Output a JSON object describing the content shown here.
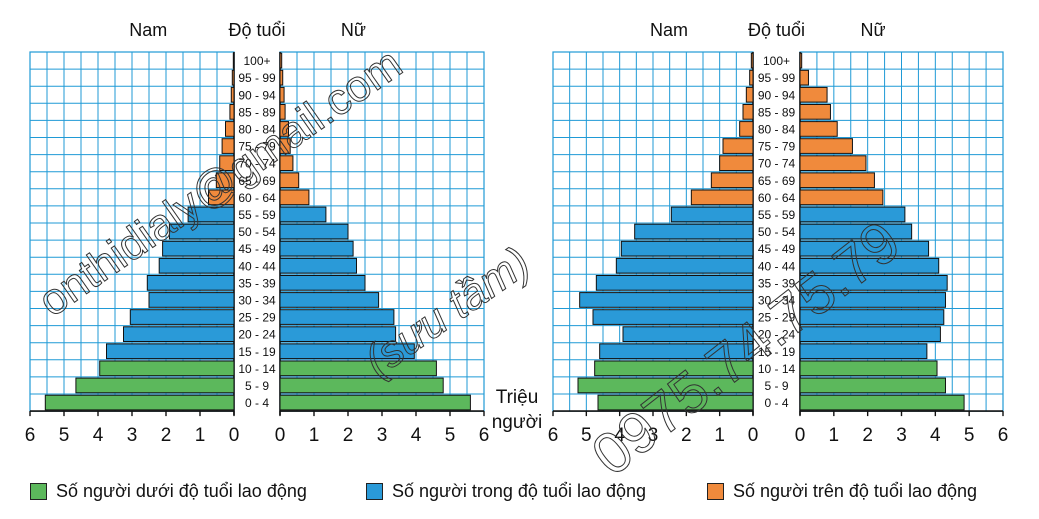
{
  "chart_data": [
    {
      "type": "bar",
      "side_labels": {
        "left": "Nam",
        "middle": "Độ tuổi",
        "right": "Nữ"
      },
      "age_groups": [
        "100+",
        "95 - 99",
        "90 - 94",
        "85 - 89",
        "80 - 84",
        "75 - 79",
        "70 - 74",
        "65 - 69",
        "60 - 64",
        "55 - 59",
        "50 - 54",
        "45 - 49",
        "40 - 44",
        "35 - 39",
        "30 - 34",
        "25 - 29",
        "20 - 24",
        "15 - 19",
        "10 - 14",
        "5 - 9",
        "0 - 4"
      ],
      "xlim": [
        0,
        6
      ],
      "x_ticks": [
        "0",
        "1",
        "2",
        "3",
        "4",
        "5",
        "6"
      ],
      "series": [
        {
          "name": "Nam",
          "values": [
            0.02,
            0.05,
            0.08,
            0.12,
            0.25,
            0.35,
            0.42,
            0.52,
            0.75,
            1.35,
            1.9,
            2.1,
            2.2,
            2.55,
            2.5,
            3.05,
            3.25,
            3.75,
            3.95,
            4.65,
            5.55
          ]
        },
        {
          "name": "Nữ",
          "values": [
            0.05,
            0.08,
            0.12,
            0.15,
            0.25,
            0.3,
            0.38,
            0.55,
            0.85,
            1.35,
            2.0,
            2.15,
            2.25,
            2.5,
            2.9,
            3.35,
            3.4,
            3.95,
            4.6,
            4.8,
            5.6
          ]
        }
      ]
    },
    {
      "type": "bar",
      "side_labels": {
        "left": "Nam",
        "middle": "Độ tuổi",
        "right": "Nữ"
      },
      "age_groups": [
        "100+",
        "95 - 99",
        "90 - 94",
        "85 - 89",
        "80 - 84",
        "75 - 79",
        "70 - 74",
        "65 - 69",
        "60 - 64",
        "55 - 59",
        "50 - 54",
        "45 - 49",
        "40 - 44",
        "35 - 39",
        "30 - 34",
        "25 - 29",
        "20 - 24",
        "15 - 19",
        "10 - 14",
        "5 - 9",
        "0 - 4"
      ],
      "xlim": [
        0,
        6
      ],
      "x_ticks": [
        "0",
        "1",
        "2",
        "3",
        "4",
        "5",
        "6"
      ],
      "unit_label": [
        "Triệu",
        "người"
      ],
      "series": [
        {
          "name": "Nam",
          "values": [
            0.05,
            0.1,
            0.2,
            0.3,
            0.4,
            0.9,
            1.0,
            1.25,
            1.85,
            2.45,
            3.55,
            3.95,
            4.1,
            4.7,
            5.2,
            4.8,
            3.9,
            4.6,
            4.75,
            5.25,
            4.65
          ]
        },
        {
          "name": "Nữ",
          "values": [
            0.05,
            0.25,
            0.8,
            0.9,
            1.1,
            1.55,
            1.95,
            2.2,
            2.45,
            3.1,
            3.3,
            3.8,
            4.1,
            4.35,
            4.3,
            4.25,
            4.15,
            3.75,
            4.05,
            4.3,
            4.85
          ]
        }
      ]
    }
  ],
  "band_colors": {
    "under": "#5cb85c",
    "working": "#2a9ad8",
    "over": "#f08a3c"
  },
  "legend": [
    {
      "label": "Số người dưới độ tuổi lao động",
      "color": "#5cb85c"
    },
    {
      "label": "Số người trong độ tuổi lao động",
      "color": "#2a9ad8"
    },
    {
      "label": "Số người trên độ tuổi lao động",
      "color": "#f08a3c"
    }
  ],
  "watermarks": [
    "onthidialy@gmail.com",
    "(sưu tầm)",
    "0975.74.75.79"
  ]
}
